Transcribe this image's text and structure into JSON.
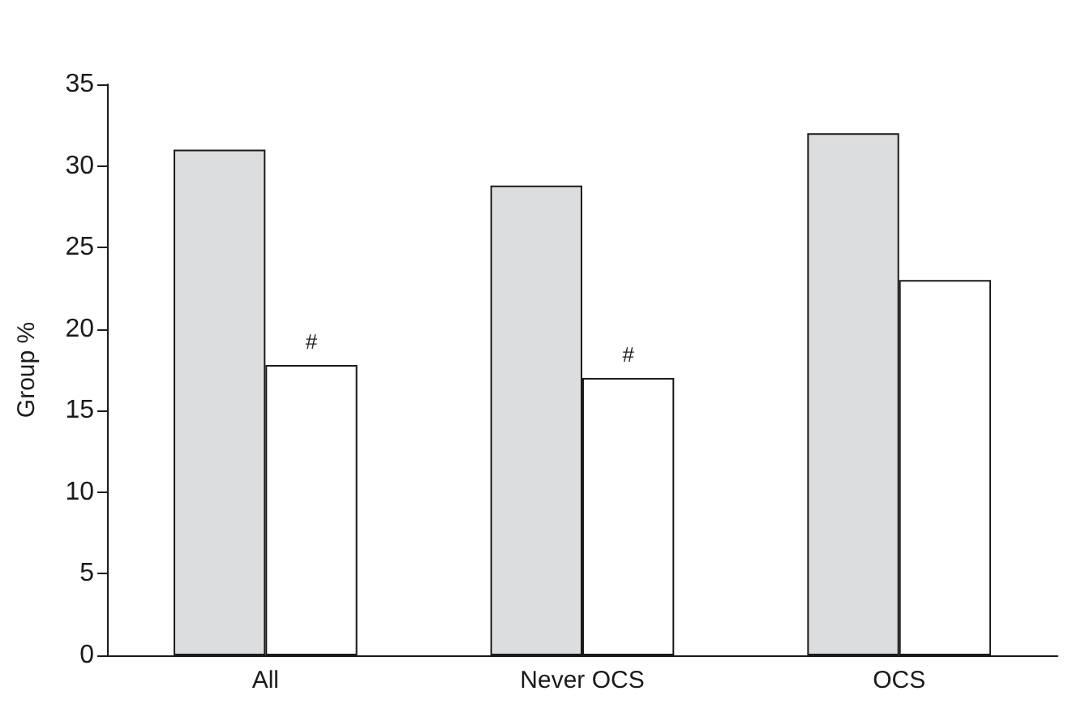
{
  "chart_data": {
    "type": "bar",
    "ylabel": "Group %",
    "categories": [
      "All",
      "Never OCS",
      "OCS"
    ],
    "series": [
      {
        "color": "#dcdddf",
        "values": [
          31,
          28.8,
          32
        ]
      },
      {
        "color": "#ffffff",
        "values": [
          17.8,
          17,
          23
        ]
      }
    ],
    "ylim": [
      0,
      35
    ],
    "yticks": [
      0,
      5,
      10,
      15,
      20,
      25,
      30,
      35
    ],
    "grid": false,
    "annotations": [
      {
        "text": "#",
        "x": "All",
        "y": 17.8
      },
      {
        "text": "#",
        "x": "Never OCS",
        "y": 17
      }
    ]
  }
}
